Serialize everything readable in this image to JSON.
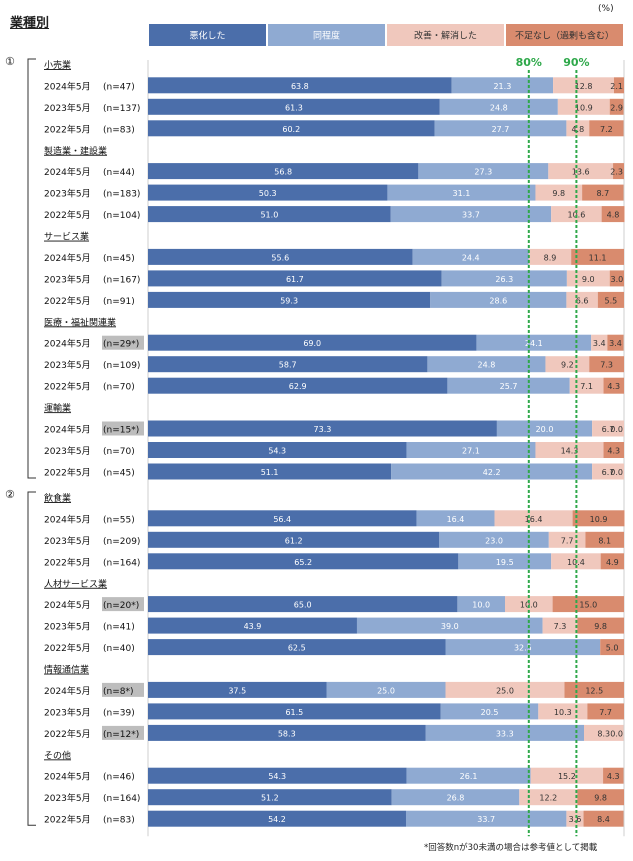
{
  "title": "業種別",
  "unit_label": "(%)",
  "footnote": "*回答数nが30未満の場合は参考値として掲載",
  "chart_data": {
    "type": "bar",
    "orientation": "horizontal",
    "stacked": true,
    "xlim": [
      0,
      100
    ],
    "legend": [
      {
        "label": "悪化した",
        "color": "#4b6eaa",
        "text_color": "#ffffff"
      },
      {
        "label": "同程度",
        "color": "#8faad2",
        "text_color": "#ffffff"
      },
      {
        "label": "改善・解消した",
        "color": "#f0c8bd",
        "text_color": "#333333"
      },
      {
        "label": "不足なし（過剰も含む）",
        "color": "#d98b6e",
        "text_color": "#333333"
      }
    ],
    "reference_lines": [
      {
        "value": 80,
        "label": "80%",
        "color": "#2ea84a"
      },
      {
        "value": 90,
        "label": "90%",
        "color": "#2ea84a"
      }
    ],
    "groups": [
      {
        "bracket": "①",
        "industries": [
          {
            "name": "小売業",
            "rows": [
              {
                "label": "2024年5月",
                "n": "(n=47)",
                "ref": false,
                "values": [
                  63.8,
                  21.3,
                  12.8,
                  2.1
                ]
              },
              {
                "label": "2023年5月",
                "n": "(n=137)",
                "ref": false,
                "values": [
                  61.3,
                  24.8,
                  10.9,
                  2.9
                ]
              },
              {
                "label": "2022年5月",
                "n": "(n=83)",
                "ref": false,
                "values": [
                  60.2,
                  27.7,
                  4.8,
                  7.2
                ]
              }
            ]
          },
          {
            "name": "製造業・建設業",
            "rows": [
              {
                "label": "2024年5月",
                "n": "(n=44)",
                "ref": false,
                "values": [
                  56.8,
                  27.3,
                  13.6,
                  2.3
                ]
              },
              {
                "label": "2023年5月",
                "n": "(n=183)",
                "ref": false,
                "values": [
                  50.3,
                  31.1,
                  9.8,
                  8.7
                ]
              },
              {
                "label": "2022年5月",
                "n": "(n=104)",
                "ref": false,
                "values": [
                  51.0,
                  33.7,
                  10.6,
                  4.8
                ]
              }
            ]
          },
          {
            "name": "サービス業",
            "rows": [
              {
                "label": "2024年5月",
                "n": "(n=45)",
                "ref": false,
                "values": [
                  55.6,
                  24.4,
                  8.9,
                  11.1
                ]
              },
              {
                "label": "2023年5月",
                "n": "(n=167)",
                "ref": false,
                "values": [
                  61.7,
                  26.3,
                  9.0,
                  3.0
                ]
              },
              {
                "label": "2022年5月",
                "n": "(n=91)",
                "ref": false,
                "values": [
                  59.3,
                  28.6,
                  6.6,
                  5.5
                ]
              }
            ]
          },
          {
            "name": "医療・福祉関連業",
            "rows": [
              {
                "label": "2024年5月",
                "n": "(n=29*)",
                "ref": true,
                "values": [
                  69.0,
                  24.1,
                  3.4,
                  3.4
                ]
              },
              {
                "label": "2023年5月",
                "n": "(n=109)",
                "ref": false,
                "values": [
                  58.7,
                  24.8,
                  9.2,
                  7.3
                ]
              },
              {
                "label": "2022年5月",
                "n": "(n=70)",
                "ref": false,
                "values": [
                  62.9,
                  25.7,
                  7.1,
                  4.3
                ]
              }
            ]
          },
          {
            "name": "運輸業",
            "rows": [
              {
                "label": "2024年5月",
                "n": "(n=15*)",
                "ref": true,
                "values": [
                  73.3,
                  20.0,
                  6.7,
                  0.0
                ]
              },
              {
                "label": "2023年5月",
                "n": "(n=70)",
                "ref": false,
                "values": [
                  54.3,
                  27.1,
                  14.3,
                  4.3
                ]
              },
              {
                "label": "2022年5月",
                "n": "(n=45)",
                "ref": false,
                "values": [
                  51.1,
                  42.2,
                  6.7,
                  0.0
                ]
              }
            ]
          }
        ]
      },
      {
        "bracket": "②",
        "industries": [
          {
            "name": "飲食業",
            "rows": [
              {
                "label": "2024年5月",
                "n": "(n=55)",
                "ref": false,
                "values": [
                  56.4,
                  16.4,
                  16.4,
                  10.9
                ]
              },
              {
                "label": "2023年5月",
                "n": "(n=209)",
                "ref": false,
                "values": [
                  61.2,
                  23.0,
                  7.7,
                  8.1
                ]
              },
              {
                "label": "2022年5月",
                "n": "(n=164)",
                "ref": false,
                "values": [
                  65.2,
                  19.5,
                  10.4,
                  4.9
                ]
              }
            ]
          },
          {
            "name": "人材サービス業",
            "rows": [
              {
                "label": "2024年5月",
                "n": "(n=20*)",
                "ref": true,
                "values": [
                  65.0,
                  10.0,
                  10.0,
                  15.0
                ]
              },
              {
                "label": "2023年5月",
                "n": "(n=41)",
                "ref": false,
                "values": [
                  43.9,
                  39.0,
                  7.3,
                  9.8
                ]
              },
              {
                "label": "2022年5月",
                "n": "(n=40)",
                "ref": false,
                "values": [
                  62.5,
                  32.5,
                  0.0,
                  5.0
                ]
              }
            ]
          },
          {
            "name": "情報通信業",
            "rows": [
              {
                "label": "2024年5月",
                "n": "(n=8*)",
                "ref": true,
                "values": [
                  37.5,
                  25.0,
                  25.0,
                  12.5
                ]
              },
              {
                "label": "2023年5月",
                "n": "(n=39)",
                "ref": false,
                "values": [
                  61.5,
                  20.5,
                  10.3,
                  7.7
                ]
              },
              {
                "label": "2022年5月",
                "n": "(n=12*)",
                "ref": true,
                "values": [
                  58.3,
                  33.3,
                  8.3,
                  0.0
                ]
              }
            ]
          },
          {
            "name": "その他",
            "rows": [
              {
                "label": "2024年5月",
                "n": "(n=46)",
                "ref": false,
                "values": [
                  54.3,
                  26.1,
                  15.2,
                  4.3
                ]
              },
              {
                "label": "2023年5月",
                "n": "(n=164)",
                "ref": false,
                "values": [
                  51.2,
                  26.8,
                  12.2,
                  9.8
                ]
              },
              {
                "label": "2022年5月",
                "n": "(n=83)",
                "ref": false,
                "values": [
                  54.2,
                  33.7,
                  3.6,
                  8.4
                ]
              }
            ]
          }
        ]
      }
    ]
  }
}
